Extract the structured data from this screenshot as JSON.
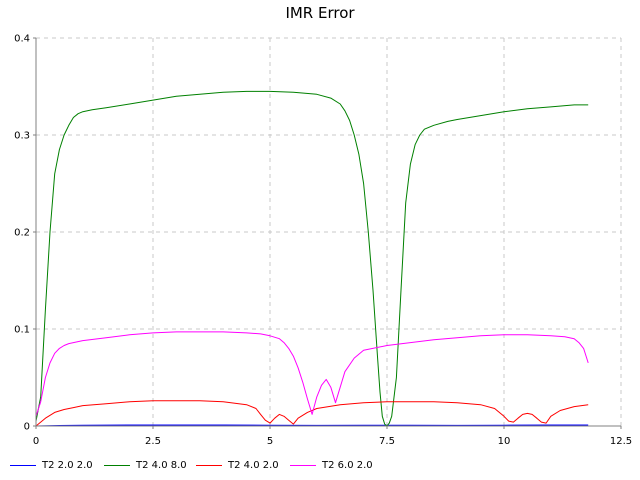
{
  "chart_data": {
    "type": "line",
    "title": "IMR Error",
    "xlabel": "",
    "ylabel": "",
    "xlim": [
      0,
      12.5
    ],
    "ylim": [
      0,
      0.4
    ],
    "x_ticks": [
      "0",
      "2.5",
      "5",
      "7.5",
      "10",
      "12.5"
    ],
    "y_ticks": [
      "0",
      "0.1",
      "0.2",
      "0.3",
      "0.4"
    ],
    "grid": true,
    "legend_position": "bottom",
    "series": [
      {
        "name": "T2 2.0 2.0",
        "color": "#0000ff",
        "x": [
          0,
          0.5,
          1,
          2,
          3,
          4,
          5,
          6,
          7,
          8,
          9,
          10,
          11,
          11.8
        ],
        "y": [
          0,
          0.0005,
          0.0008,
          0.001,
          0.001,
          0.001,
          0.0008,
          0.0006,
          0.0008,
          0.0008,
          0.0006,
          0.0008,
          0.001,
          0.001
        ]
      },
      {
        "name": "T2 4.0 8.0",
        "color": "#008000",
        "x": [
          0,
          0.1,
          0.2,
          0.3,
          0.4,
          0.5,
          0.6,
          0.7,
          0.8,
          0.9,
          1.0,
          1.2,
          1.5,
          2.0,
          2.5,
          3.0,
          3.5,
          4.0,
          4.5,
          5.0,
          5.5,
          6.0,
          6.3,
          6.5,
          6.6,
          6.7,
          6.8,
          6.9,
          7.0,
          7.1,
          7.2,
          7.3,
          7.35,
          7.4,
          7.45,
          7.5,
          7.55,
          7.6,
          7.7,
          7.8,
          7.9,
          8.0,
          8.1,
          8.2,
          8.3,
          8.5,
          8.8,
          9.0,
          9.5,
          10.0,
          10.5,
          11.0,
          11.5,
          11.8
        ],
        "y": [
          0.005,
          0.03,
          0.12,
          0.2,
          0.26,
          0.285,
          0.3,
          0.31,
          0.318,
          0.322,
          0.324,
          0.326,
          0.328,
          0.332,
          0.336,
          0.34,
          0.342,
          0.344,
          0.345,
          0.345,
          0.344,
          0.342,
          0.338,
          0.332,
          0.325,
          0.315,
          0.3,
          0.28,
          0.25,
          0.2,
          0.14,
          0.07,
          0.035,
          0.01,
          0.002,
          0,
          0.003,
          0.01,
          0.05,
          0.14,
          0.23,
          0.27,
          0.29,
          0.3,
          0.306,
          0.31,
          0.314,
          0.316,
          0.32,
          0.324,
          0.327,
          0.329,
          0.331,
          0.331
        ]
      },
      {
        "name": "T2 4.0 2.0",
        "color": "#ff0000",
        "x": [
          0,
          0.2,
          0.4,
          0.6,
          0.8,
          1.0,
          1.5,
          2.0,
          2.5,
          3.0,
          3.5,
          4.0,
          4.5,
          4.7,
          4.8,
          4.9,
          5.0,
          5.1,
          5.2,
          5.3,
          5.4,
          5.5,
          5.6,
          5.8,
          6.0,
          6.5,
          7.0,
          7.5,
          8.0,
          8.5,
          9.0,
          9.5,
          9.8,
          10.0,
          10.1,
          10.2,
          10.3,
          10.4,
          10.5,
          10.6,
          10.7,
          10.8,
          10.9,
          11.0,
          11.2,
          11.5,
          11.8
        ],
        "y": [
          0,
          0.008,
          0.014,
          0.017,
          0.019,
          0.021,
          0.023,
          0.025,
          0.026,
          0.026,
          0.026,
          0.025,
          0.022,
          0.018,
          0.012,
          0.006,
          0.003,
          0.008,
          0.012,
          0.01,
          0.006,
          0.002,
          0.008,
          0.014,
          0.018,
          0.022,
          0.024,
          0.025,
          0.025,
          0.025,
          0.024,
          0.022,
          0.018,
          0.01,
          0.005,
          0.004,
          0.008,
          0.012,
          0.013,
          0.012,
          0.008,
          0.004,
          0.003,
          0.01,
          0.016,
          0.02,
          0.022
        ]
      },
      {
        "name": "T2 6.0 2.0",
        "color": "#ff00ff",
        "x": [
          0,
          0.1,
          0.2,
          0.3,
          0.4,
          0.5,
          0.6,
          0.7,
          0.8,
          1.0,
          1.5,
          2.0,
          2.5,
          3.0,
          3.5,
          4.0,
          4.5,
          4.8,
          5.0,
          5.2,
          5.3,
          5.4,
          5.5,
          5.6,
          5.7,
          5.8,
          5.9,
          6.0,
          6.1,
          6.2,
          6.3,
          6.4,
          6.5,
          6.6,
          6.8,
          7.0,
          7.5,
          8.0,
          8.5,
          9.0,
          9.5,
          10.0,
          10.5,
          11.0,
          11.3,
          11.5,
          11.6,
          11.7,
          11.8
        ],
        "y": [
          0.01,
          0.025,
          0.05,
          0.065,
          0.075,
          0.08,
          0.083,
          0.085,
          0.086,
          0.088,
          0.091,
          0.094,
          0.096,
          0.097,
          0.097,
          0.097,
          0.096,
          0.095,
          0.093,
          0.09,
          0.086,
          0.08,
          0.072,
          0.06,
          0.045,
          0.028,
          0.012,
          0.03,
          0.042,
          0.048,
          0.04,
          0.024,
          0.04,
          0.056,
          0.07,
          0.078,
          0.083,
          0.086,
          0.089,
          0.091,
          0.093,
          0.094,
          0.094,
          0.093,
          0.092,
          0.09,
          0.086,
          0.08,
          0.065
        ]
      }
    ]
  }
}
